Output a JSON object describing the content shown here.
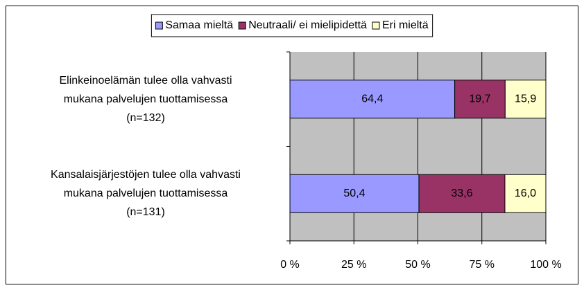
{
  "chart_data": {
    "type": "stacked_barh",
    "categories": [
      "Elinkeinoelämän tulee olla vahvasti\nmukana palvelujen tuottamisessa\n(n=132)",
      "Kansalaisjärjestöjen tulee olla vahvasti\nmukana palvelujen tuottamisessa\n(n=131)"
    ],
    "series": [
      {
        "name": "Samaa mieltä",
        "color": "#9999ff",
        "values": [
          64.4,
          50.4
        ],
        "value_labels": [
          "64,4",
          "50,4"
        ]
      },
      {
        "name": "Neutraali/ ei mielipidettä",
        "color": "#993366",
        "values": [
          19.7,
          33.6
        ],
        "value_labels": [
          "19,7",
          "33,6"
        ]
      },
      {
        "name": "Eri mieltä",
        "color": "#ffffcc",
        "values": [
          15.9,
          16.0
        ],
        "value_labels": [
          "15,9",
          "16,0"
        ]
      }
    ],
    "xlim": [
      0,
      100
    ],
    "xticks": [
      {
        "value": 0,
        "label": "0 %"
      },
      {
        "value": 25,
        "label": "25 %"
      },
      {
        "value": 50,
        "label": "50 %"
      },
      {
        "value": 75,
        "label": "75 %"
      },
      {
        "value": 100,
        "label": "100 %"
      }
    ],
    "grid": true,
    "legend": "top"
  }
}
